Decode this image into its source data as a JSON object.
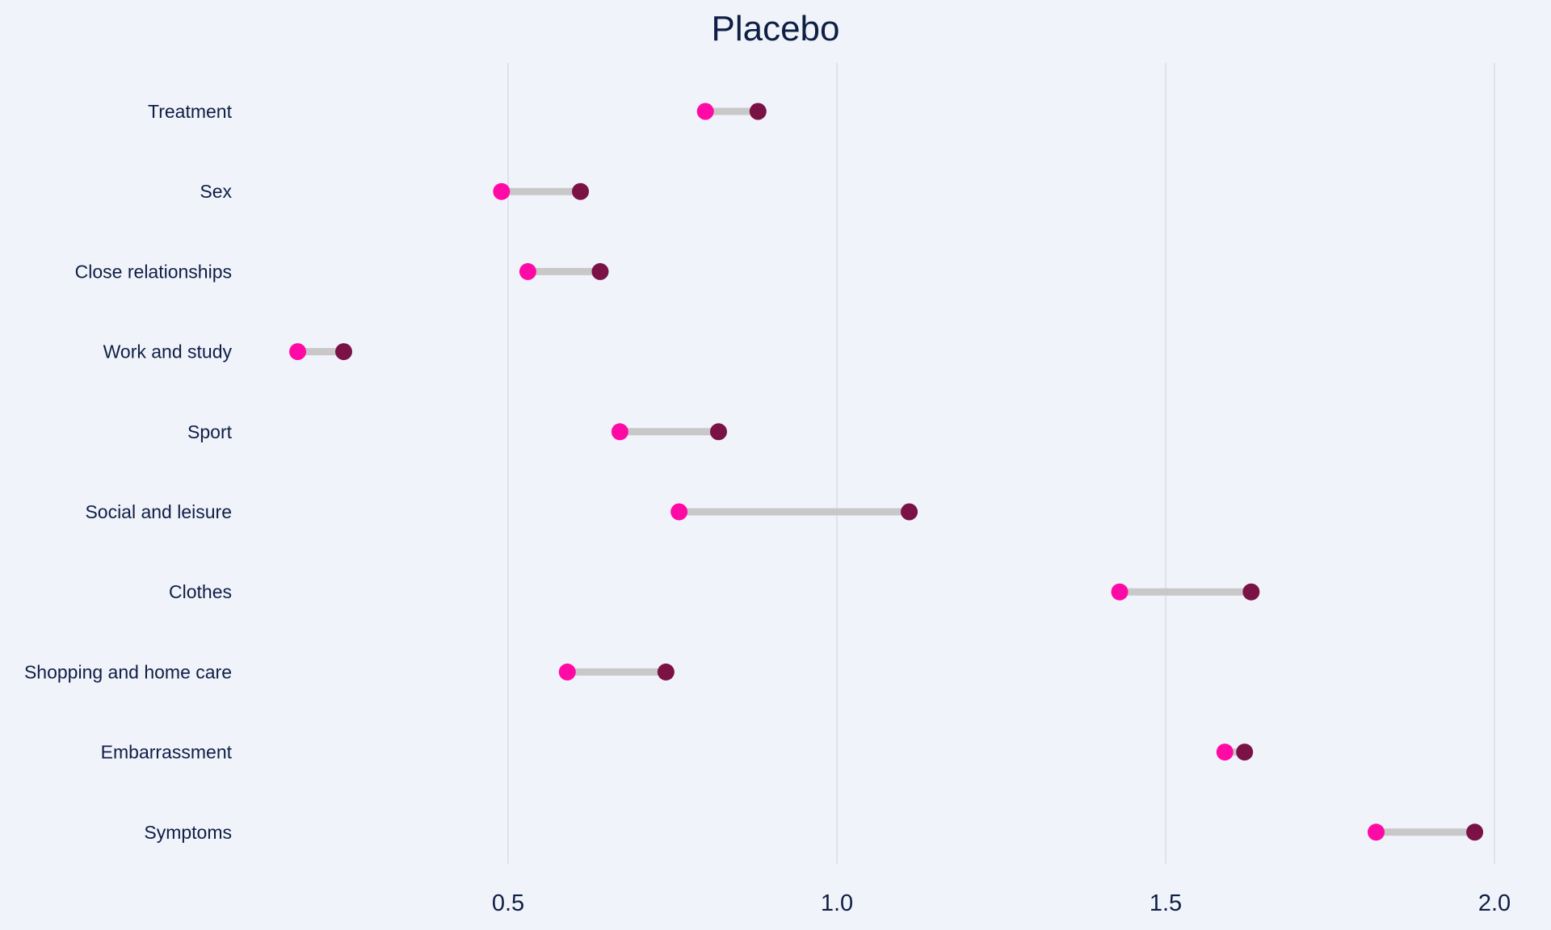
{
  "colors": {
    "background": "#f1f3fb",
    "title": "#0e1f44",
    "label": "#0e1f44",
    "grid": "#d3d6de",
    "connector": "#c8c8c8",
    "start_point": "#ff0aa5",
    "end_point": "#7a1246"
  },
  "chart_data": {
    "type": "dumbbell",
    "title": "Placebo",
    "xlabel": "",
    "ylabel": "",
    "xlim": [
      0.0,
      2.05
    ],
    "xticks": [
      0.5,
      1.0,
      1.5,
      2.0
    ],
    "xtick_labels": [
      "0.5",
      "1.0",
      "1.5",
      "2.0"
    ],
    "grid": "vertical",
    "legend": "none",
    "categories": [
      "Treatment",
      "Sex",
      "Close relationships",
      "Work and study",
      "Sport",
      "Social and leisure",
      "Clothes",
      "Shopping and home care",
      "Embarrassment",
      "Symptoms"
    ],
    "series": [
      {
        "values": [
          0.8,
          0.49,
          0.53,
          0.18,
          0.67,
          0.76,
          1.43,
          0.59,
          1.59,
          1.82
        ]
      },
      {
        "values": [
          0.88,
          0.61,
          0.64,
          0.25,
          0.82,
          1.11,
          1.63,
          0.74,
          1.62,
          1.97
        ]
      }
    ]
  }
}
